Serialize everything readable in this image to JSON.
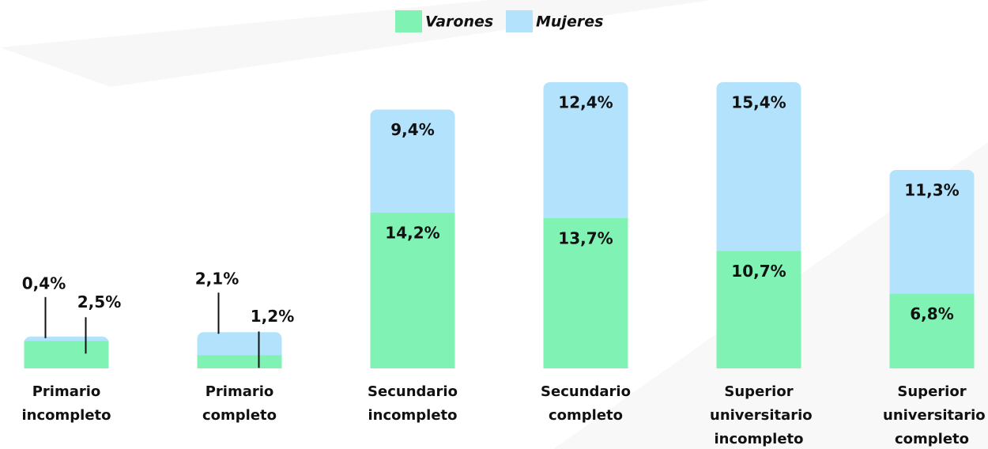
{
  "chart_data": {
    "type": "stacked-bar",
    "categories": [
      "Primario incompleto",
      "Primario completo",
      "Secundario incompleto",
      "Secundario completo",
      "Superior universitario incompleto",
      "Superior universitario completo"
    ],
    "series": [
      {
        "name": "Varones",
        "color": "#80f2b4",
        "values": [
          2.5,
          1.2,
          14.2,
          13.7,
          10.7,
          6.8
        ],
        "value_labels": [
          "2,5%",
          "1,2%",
          "14,2%",
          "13,7%",
          "10,7%",
          "6,8%"
        ]
      },
      {
        "name": "Mujeres",
        "color": "#b3e3fc",
        "values": [
          0.4,
          2.1,
          9.4,
          12.4,
          15.4,
          11.3
        ],
        "value_labels": [
          "0,4%",
          "2,1%",
          "9,4%",
          "12,4%",
          "15,4%",
          "11,3%"
        ]
      }
    ],
    "legend": "top"
  }
}
